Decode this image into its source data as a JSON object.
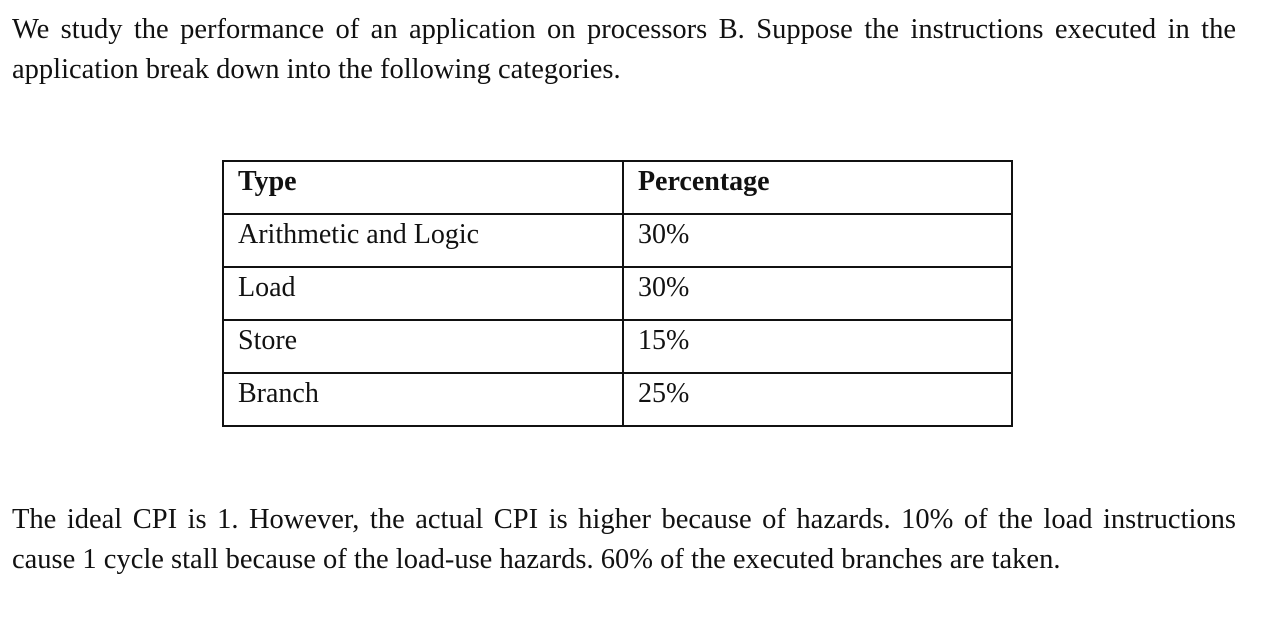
{
  "intro_text": "We study the performance of an application on processors B. Suppose the instructions executed in the application break down into the following categories.",
  "table": {
    "headers": [
      "Type",
      "Percentage"
    ],
    "rows": [
      {
        "type": "Arithmetic and Logic",
        "percentage": "30%"
      },
      {
        "type": "Load",
        "percentage": "30%"
      },
      {
        "type": "Store",
        "percentage": "15%"
      },
      {
        "type": "Branch",
        "percentage": "25%"
      }
    ]
  },
  "closing_text": "The ideal CPI is 1. However, the actual CPI is higher because of hazards. 10% of the load instructions cause 1 cycle stall because of the load-use hazards. 60% of the executed branches are taken."
}
